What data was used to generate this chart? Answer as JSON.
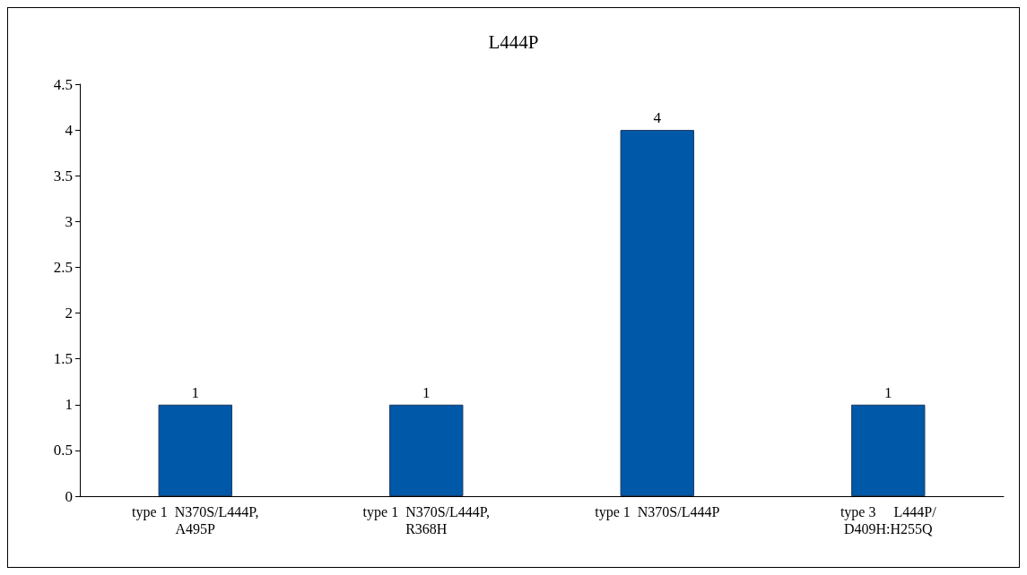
{
  "chart_data": {
    "type": "bar",
    "title": "L444P",
    "categories": [
      "type 1  N370S/L444P,\nA495P",
      "type 1  N370S/L444P,\nR368H",
      "type 1  N370S/L444P",
      "type 3     L444P/\nD409H:H255Q"
    ],
    "values": [
      1,
      1,
      4,
      1
    ],
    "color": "#0058a8",
    "ylim": [
      0,
      4.5
    ],
    "yticks": [
      0,
      0.5,
      1,
      1.5,
      2,
      2.5,
      3,
      3.5,
      4,
      4.5
    ],
    "grid": false,
    "data_labels": true
  }
}
